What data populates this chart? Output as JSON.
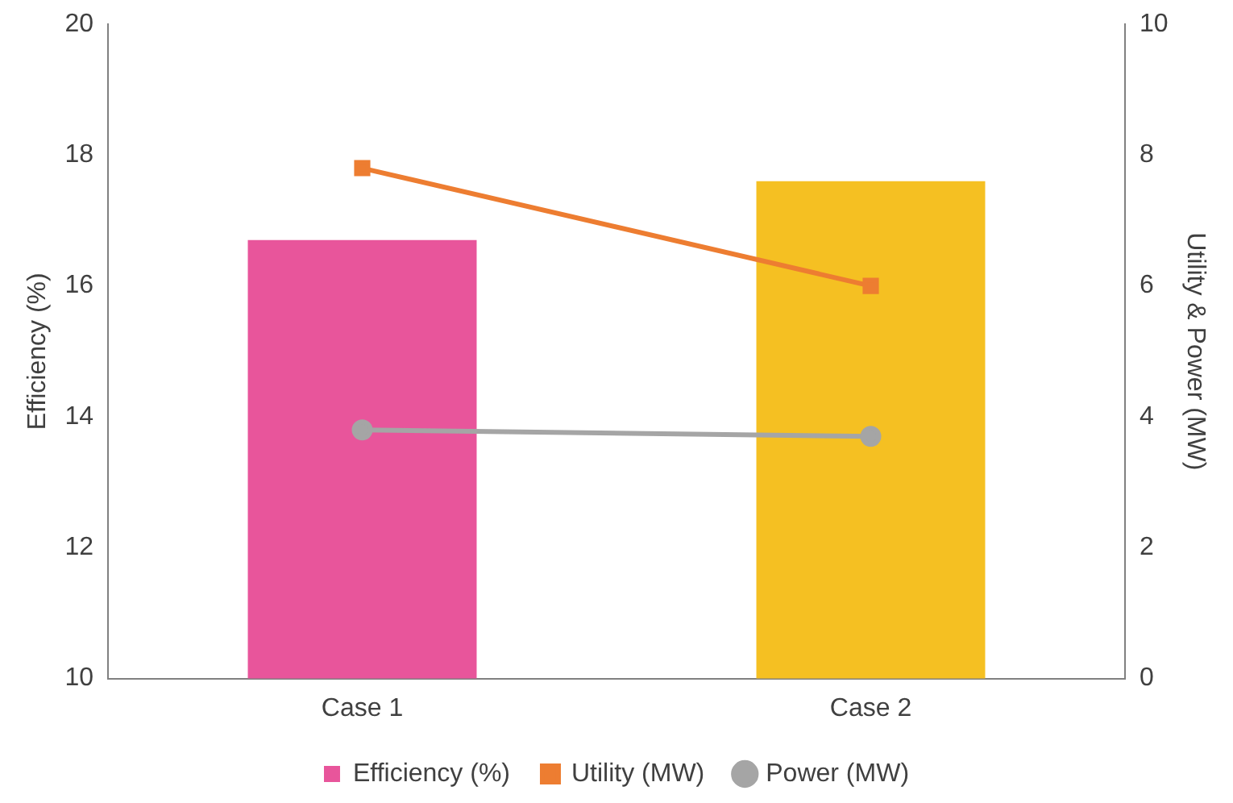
{
  "chart_data": {
    "type": "bar",
    "categories": [
      "Case 1",
      "Case 2"
    ],
    "ylabel": "Efficiency (%)",
    "y2label": "Utility & Power (MW)",
    "ylim": [
      10,
      20
    ],
    "yticks": [
      10,
      12,
      14,
      16,
      18,
      20
    ],
    "y2lim": [
      0,
      10
    ],
    "y2ticks": [
      0,
      2,
      4,
      6,
      8,
      10
    ],
    "grid": false,
    "legend": "bottom",
    "series": [
      {
        "name": "Efficiency (%)",
        "colors": [
          "#e8559b",
          "#f5c022"
        ],
        "values": [
          16.7,
          17.6
        ]
      },
      {
        "name": "Utility (MW)",
        "type": "line",
        "axis": "y2",
        "marker": "square",
        "color": "#ed7d31",
        "values": [
          7.8,
          6.0
        ]
      },
      {
        "name": "Power (MW)",
        "type": "line",
        "axis": "y2",
        "marker": "circle",
        "color": "#a5a5a5",
        "values": [
          3.8,
          3.7
        ]
      }
    ]
  }
}
